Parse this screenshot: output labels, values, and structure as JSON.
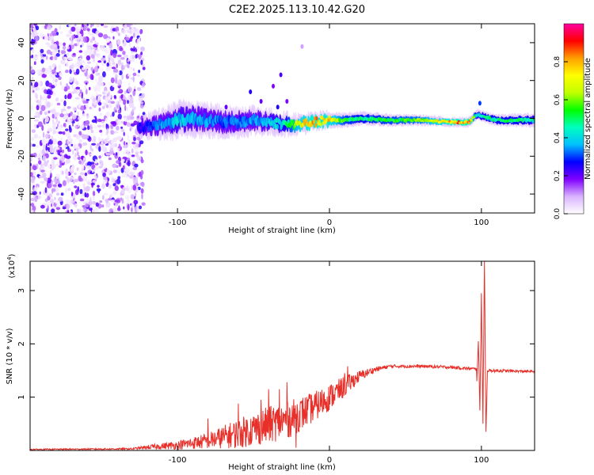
{
  "figure_title": "C2E2.2025.113.10.42.G20",
  "chart_data": [
    {
      "type": "heatmap",
      "name": "spectrogram",
      "xlabel": "Height of straight line (km)",
      "ylabel": "Frequency (Hz)",
      "xlim": [
        -197,
        135
      ],
      "ylim": [
        -50,
        50
      ],
      "x_ticks": [
        -100,
        0,
        100
      ],
      "x_tick_labels": [
        "-100",
        "0",
        "100"
      ],
      "y_ticks": [
        -40,
        -20,
        0,
        20,
        40
      ],
      "y_tick_labels": [
        "-40",
        "-20",
        "0",
        "20",
        "40"
      ],
      "grid": false,
      "colorbar": {
        "label": "Normalized spectral amplitude",
        "range": [
          0,
          1
        ],
        "ticks": [
          0.0,
          0.2,
          0.4,
          0.6,
          0.8
        ],
        "tick_labels": [
          "0.0",
          "0.2",
          "0.4",
          "0.6",
          "0.8"
        ],
        "colormap": [
          "#ffffff",
          "#d9b3ff",
          "#8000ff",
          "#0000ff",
          "#00c0ff",
          "#00ffc0",
          "#00ff00",
          "#c0ff00",
          "#ffff00",
          "#ffa000",
          "#ff0000",
          "#ff00a0"
        ]
      },
      "noise_region": {
        "x_range": [
          -197,
          -122
        ],
        "y_range": [
          -50,
          50
        ],
        "amplitude": [
          0.02,
          0.25
        ]
      },
      "ridge": [
        {
          "x": -126,
          "y": -5,
          "amplitude": 0.25
        },
        {
          "x": -110,
          "y": -3,
          "amplitude": 0.35
        },
        {
          "x": -100,
          "y": -1,
          "amplitude": 0.4
        },
        {
          "x": -90,
          "y": 0,
          "amplitude": 0.38
        },
        {
          "x": -80,
          "y": -1,
          "amplitude": 0.35
        },
        {
          "x": -70,
          "y": -2,
          "amplitude": 0.32
        },
        {
          "x": -60,
          "y": -2,
          "amplitude": 0.33
        },
        {
          "x": -50,
          "y": -1,
          "amplitude": 0.35
        },
        {
          "x": -40,
          "y": -2,
          "amplitude": 0.4
        },
        {
          "x": -30,
          "y": -3,
          "amplitude": 0.45
        },
        {
          "x": -20,
          "y": -3,
          "amplitude": 0.7
        },
        {
          "x": -10,
          "y": -2,
          "amplitude": 0.8
        },
        {
          "x": 0,
          "y": -1,
          "amplitude": 0.75
        },
        {
          "x": 10,
          "y": -1,
          "amplitude": 0.55
        },
        {
          "x": 20,
          "y": 0,
          "amplitude": 0.5
        },
        {
          "x": 40,
          "y": -1,
          "amplitude": 0.55
        },
        {
          "x": 60,
          "y": -1,
          "amplitude": 0.6
        },
        {
          "x": 80,
          "y": -2,
          "amplitude": 0.8
        },
        {
          "x": 92,
          "y": -2,
          "amplitude": 0.85
        },
        {
          "x": 97,
          "y": 2,
          "amplitude": 0.45
        },
        {
          "x": 110,
          "y": -1,
          "amplitude": 0.5
        },
        {
          "x": 125,
          "y": -1,
          "amplitude": 0.5
        },
        {
          "x": 135,
          "y": -1,
          "amplitude": 0.45
        }
      ],
      "ridge_halfwidth": [
        {
          "x": -126,
          "hz": 2
        },
        {
          "x": -100,
          "hz": 4
        },
        {
          "x": -50,
          "hz": 3
        },
        {
          "x": -20,
          "hz": 2
        },
        {
          "x": 20,
          "hz": 1.5
        },
        {
          "x": 80,
          "hz": 1
        },
        {
          "x": 135,
          "hz": 1.5
        }
      ],
      "features": [
        {
          "x": -52,
          "y": 14,
          "amplitude": 0.25
        },
        {
          "x": -45,
          "y": 9,
          "amplitude": 0.2
        },
        {
          "x": -32,
          "y": 23,
          "amplitude": 0.22
        },
        {
          "x": -37,
          "y": 17,
          "amplitude": 0.18
        },
        {
          "x": -18,
          "y": 38,
          "amplitude": 0.1
        },
        {
          "x": -28,
          "y": 9,
          "amplitude": 0.18
        },
        {
          "x": -34,
          "y": 6,
          "amplitude": 0.25
        },
        {
          "x": -68,
          "y": 6,
          "amplitude": 0.2
        },
        {
          "x": -82,
          "y": 4,
          "amplitude": 0.2
        },
        {
          "x": 99,
          "y": 8,
          "amplitude": 0.3
        }
      ]
    },
    {
      "type": "line",
      "name": "snr",
      "xlabel": "Height of straight line (km)",
      "ylabel": "SNR (10 * v/v)",
      "y_scale_label": "(x10",
      "y_scale_exponent": "4",
      "y_scale_suffix": ")",
      "xlim": [
        -197,
        135
      ],
      "ylim": [
        0,
        3.55
      ],
      "x_ticks": [
        -100,
        0,
        100
      ],
      "x_tick_labels": [
        "-100",
        "0",
        "100"
      ],
      "y_ticks": [
        1,
        2,
        3
      ],
      "y_tick_labels": [
        "1",
        "2",
        "3"
      ],
      "grid": false,
      "color": "#e8302a",
      "envelope": [
        {
          "x": -197,
          "mean": 0.02,
          "noise": 0.01
        },
        {
          "x": -130,
          "mean": 0.03,
          "noise": 0.015
        },
        {
          "x": -120,
          "mean": 0.06,
          "noise": 0.04
        },
        {
          "x": -100,
          "mean": 0.1,
          "noise": 0.08
        },
        {
          "x": -80,
          "mean": 0.18,
          "noise": 0.15
        },
        {
          "x": -60,
          "mean": 0.32,
          "noise": 0.28
        },
        {
          "x": -40,
          "mean": 0.48,
          "noise": 0.35
        },
        {
          "x": -25,
          "mean": 0.6,
          "noise": 0.35
        },
        {
          "x": -10,
          "mean": 0.82,
          "noise": 0.28
        },
        {
          "x": 0,
          "mean": 1.0,
          "noise": 0.25
        },
        {
          "x": 10,
          "mean": 1.2,
          "noise": 0.2
        },
        {
          "x": 20,
          "mean": 1.4,
          "noise": 0.1
        },
        {
          "x": 30,
          "mean": 1.52,
          "noise": 0.05
        },
        {
          "x": 40,
          "mean": 1.58,
          "noise": 0.03
        },
        {
          "x": 60,
          "mean": 1.58,
          "noise": 0.03
        },
        {
          "x": 80,
          "mean": 1.56,
          "noise": 0.03
        },
        {
          "x": 95,
          "mean": 1.53,
          "noise": 0.03
        },
        {
          "x": 105,
          "mean": 1.5,
          "noise": 0.03
        },
        {
          "x": 135,
          "mean": 1.48,
          "noise": 0.02
        }
      ],
      "spikes": [
        {
          "x": -80,
          "y": 0.6
        },
        {
          "x": -60,
          "y": 0.88
        },
        {
          "x": -45,
          "y": 0.95
        },
        {
          "x": -40,
          "y": 1.15
        },
        {
          "x": -33,
          "y": 1.15
        },
        {
          "x": -28,
          "y": 1.28
        },
        {
          "x": -22,
          "y": 0.05
        },
        {
          "x": 12,
          "y": 1.58
        },
        {
          "x": 10,
          "y": 1.45
        }
      ],
      "burst": [
        {
          "x": 97,
          "y": 1.3
        },
        {
          "x": 98,
          "y": 2.05
        },
        {
          "x": 99,
          "y": 0.75
        },
        {
          "x": 100,
          "y": 2.95
        },
        {
          "x": 101,
          "y": 0.5
        },
        {
          "x": 102,
          "y": 3.55
        },
        {
          "x": 103,
          "y": 0.35
        },
        {
          "x": 104,
          "y": 1.5
        }
      ]
    }
  ]
}
